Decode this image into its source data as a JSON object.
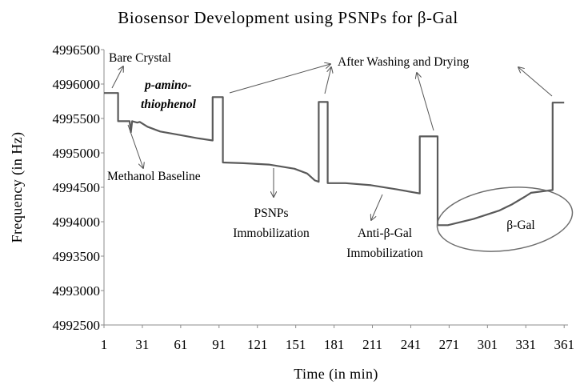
{
  "chart_data": {
    "type": "line",
    "title": "Biosensor Development using PSNPs for β-Gal",
    "xlabel": "Time (in min)",
    "ylabel": "Frequency (in Hz)",
    "xlim": [
      1,
      364
    ],
    "ylim": [
      4992500,
      4996500
    ],
    "x_ticks": [
      "1",
      "31",
      "61",
      "91",
      "121",
      "151",
      "181",
      "211",
      "241",
      "271",
      "301",
      "331",
      "361"
    ],
    "y_ticks": [
      "4996500",
      "4996000",
      "4995500",
      "4995000",
      "4994500",
      "4994000",
      "4993500",
      "4993000",
      "4992500"
    ],
    "grid": false,
    "series": [
      {
        "points": [
          [
            1,
            4995870
          ],
          [
            12,
            4995870
          ],
          [
            12,
            4995460
          ],
          [
            21,
            4995460
          ],
          [
            22,
            4995300
          ],
          [
            23,
            4995460
          ],
          [
            27,
            4995440
          ],
          [
            29,
            4995450
          ],
          [
            35,
            4995380
          ],
          [
            45,
            4995310
          ],
          [
            60,
            4995260
          ],
          [
            75,
            4995210
          ],
          [
            86,
            4995180
          ],
          [
            86,
            4995810
          ],
          [
            94,
            4995810
          ],
          [
            94,
            4994860
          ],
          [
            110,
            4994850
          ],
          [
            130,
            4994830
          ],
          [
            150,
            4994770
          ],
          [
            160,
            4994700
          ],
          [
            166,
            4994600
          ],
          [
            169,
            4994580
          ],
          [
            169,
            4995740
          ],
          [
            176,
            4995740
          ],
          [
            176,
            4994560
          ],
          [
            190,
            4994560
          ],
          [
            210,
            4994530
          ],
          [
            230,
            4994470
          ],
          [
            248,
            4994410
          ],
          [
            248,
            4995240
          ],
          [
            262,
            4995240
          ],
          [
            262,
            4993950
          ],
          [
            270,
            4993950
          ],
          [
            290,
            4994040
          ],
          [
            310,
            4994160
          ],
          [
            320,
            4994250
          ],
          [
            330,
            4994360
          ],
          [
            335,
            4994420
          ],
          [
            352,
            4994460
          ],
          [
            352,
            4995730
          ],
          [
            361,
            4995730
          ]
        ]
      }
    ],
    "annotations": [
      {
        "text": "Bare Crystal"
      },
      {
        "text": "p-amino-",
        "line2": "thiophenol"
      },
      {
        "text": "After Washing and Drying"
      },
      {
        "text": "Methanol Baseline"
      },
      {
        "text": "PSNPs",
        "line2": "Immobilization"
      },
      {
        "text": "Anti-β-Gal",
        "line2": "Immobilization"
      },
      {
        "text": "β-Gal"
      }
    ]
  }
}
